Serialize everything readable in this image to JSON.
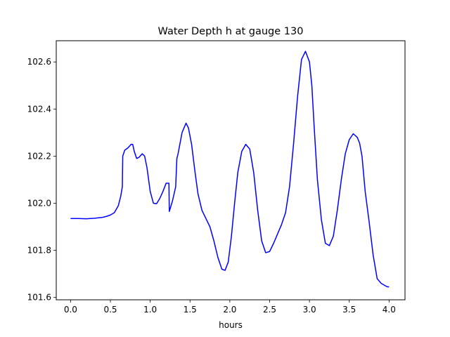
{
  "chart_data": {
    "type": "line",
    "title": "Water Depth h at gauge 130",
    "xlabel": "hours",
    "ylabel": "",
    "xlim": [
      -0.18,
      4.2
    ],
    "ylim": [
      101.59,
      102.69
    ],
    "xticks": [
      0.0,
      0.5,
      1.0,
      1.5,
      2.0,
      2.5,
      3.0,
      3.5,
      4.0
    ],
    "xtick_labels": [
      "0.0",
      "0.5",
      "1.0",
      "1.5",
      "2.0",
      "2.5",
      "3.0",
      "3.5",
      "4.0"
    ],
    "yticks": [
      101.6,
      101.8,
      102.0,
      102.2,
      102.4,
      102.6
    ],
    "ytick_labels": [
      "101.6",
      "101.8",
      "102.0",
      "102.2",
      "102.4",
      "102.6"
    ],
    "grid": false,
    "series": [
      {
        "color": "#0000ff",
        "x": [
          0.0,
          0.1,
          0.2,
          0.3,
          0.4,
          0.45,
          0.5,
          0.55,
          0.6,
          0.63,
          0.65,
          0.655,
          0.68,
          0.72,
          0.76,
          0.78,
          0.8,
          0.83,
          0.86,
          0.9,
          0.93,
          0.96,
          1.0,
          1.04,
          1.08,
          1.12,
          1.16,
          1.2,
          1.235,
          1.24,
          1.28,
          1.32,
          1.335,
          1.35,
          1.4,
          1.45,
          1.48,
          1.52,
          1.56,
          1.6,
          1.65,
          1.7,
          1.75,
          1.8,
          1.85,
          1.9,
          1.94,
          1.98,
          2.02,
          2.06,
          2.1,
          2.15,
          2.2,
          2.25,
          2.3,
          2.35,
          2.4,
          2.45,
          2.5,
          2.55,
          2.6,
          2.65,
          2.7,
          2.75,
          2.8,
          2.85,
          2.9,
          2.95,
          3.0,
          3.03,
          3.06,
          3.1,
          3.15,
          3.2,
          3.25,
          3.3,
          3.35,
          3.4,
          3.45,
          3.5,
          3.55,
          3.6,
          3.63,
          3.66,
          3.7,
          3.75,
          3.8,
          3.85,
          3.9,
          3.95,
          3.98,
          4.0
        ],
        "y": [
          101.935,
          101.935,
          101.934,
          101.936,
          101.94,
          101.944,
          101.95,
          101.96,
          101.99,
          102.03,
          102.07,
          102.2,
          102.225,
          102.235,
          102.25,
          102.25,
          102.22,
          102.19,
          102.195,
          102.21,
          102.2,
          102.15,
          102.05,
          102.0,
          101.998,
          102.02,
          102.05,
          102.085,
          102.085,
          101.965,
          102.01,
          102.07,
          102.19,
          102.21,
          102.3,
          102.34,
          102.32,
          102.25,
          102.14,
          102.04,
          101.97,
          101.935,
          101.9,
          101.84,
          101.77,
          101.72,
          101.715,
          101.75,
          101.86,
          102.0,
          102.13,
          102.22,
          102.25,
          102.23,
          102.13,
          101.97,
          101.84,
          101.79,
          101.795,
          101.83,
          101.87,
          101.91,
          101.96,
          102.07,
          102.25,
          102.45,
          102.61,
          102.645,
          102.6,
          102.5,
          102.32,
          102.1,
          101.93,
          101.83,
          101.82,
          101.86,
          101.97,
          102.1,
          102.21,
          102.27,
          102.295,
          102.28,
          102.255,
          102.2,
          102.05,
          101.92,
          101.78,
          101.68,
          101.66,
          101.65,
          101.645,
          101.645
        ]
      }
    ]
  }
}
